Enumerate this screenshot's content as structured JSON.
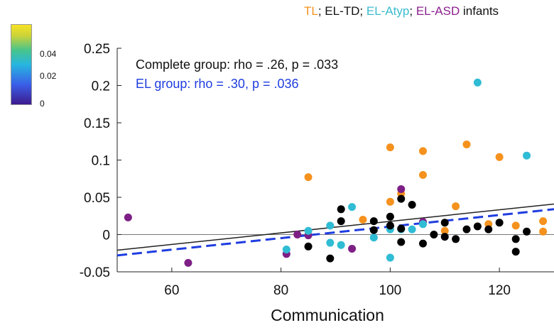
{
  "chart_data": {
    "type": "scatter",
    "title_parts": [
      "TL",
      "; ",
      "EL-TD",
      "; ",
      "EL-Atyp",
      "; ",
      "EL-ASD",
      " infants"
    ],
    "title_colors": [
      "#f5921e",
      "#111111",
      "#111111",
      "#111111",
      "#3bbcd0",
      "#111111",
      "#8b1f8f",
      "#111111"
    ],
    "xlabel": "Communication",
    "ylabel": "",
    "xlim": [
      50,
      130
    ],
    "ylim": [
      -0.05,
      0.25
    ],
    "xticks": [
      "60",
      "80",
      "100",
      "120"
    ],
    "xtick_values": [
      60,
      80,
      100,
      120
    ],
    "yticks": [
      "-0.05",
      "0",
      "0.05",
      "0.1",
      "0.15",
      "0.2",
      "0.25"
    ],
    "ytick_values": [
      -0.05,
      0,
      0.05,
      0.1,
      0.15,
      0.2,
      0.25
    ],
    "colorbar_ticks": [
      "0.04",
      "0.02",
      "0"
    ],
    "annotations": {
      "complete": "Complete group: rho = .26, p = .033",
      "el": "EL group: rho = .30, p = .036"
    },
    "colors": {
      "TL": "#f5921e",
      "EL-TD": "#000000",
      "EL-Atyp": "#2fbcd4",
      "EL-ASD": "#7e1f86",
      "complete_line": "#222222",
      "el_line": "#1f3de0"
    },
    "fit_lines": [
      {
        "name": "Complete group",
        "x": [
          50,
          130
        ],
        "y": [
          -0.021,
          0.041
        ],
        "style": "solid"
      },
      {
        "name": "EL group",
        "x": [
          50,
          130
        ],
        "y": [
          -0.028,
          0.034
        ],
        "style": "dashed"
      }
    ],
    "series": [
      {
        "name": "TL",
        "points": [
          [
            85,
            0.077
          ],
          [
            95,
            0.02
          ],
          [
            100,
            0.117
          ],
          [
            100,
            0.044
          ],
          [
            102,
            0.055
          ],
          [
            106,
            0.112
          ],
          [
            106,
            0.08
          ],
          [
            110,
            0.005
          ],
          [
            112,
            0.038
          ],
          [
            114,
            0.121
          ],
          [
            118,
            0.014
          ],
          [
            120,
            0.104
          ],
          [
            123,
            0.012
          ],
          [
            128,
            0.018
          ],
          [
            128,
            0.004
          ]
        ]
      },
      {
        "name": "EL-TD",
        "points": [
          [
            85,
            -0.016
          ],
          [
            89,
            -0.032
          ],
          [
            91,
            0.034
          ],
          [
            91,
            0.018
          ],
          [
            97,
            0.018
          ],
          [
            97,
            0.006
          ],
          [
            100,
            0.024
          ],
          [
            100,
            0.012
          ],
          [
            102,
            0.048
          ],
          [
            102,
            0.008
          ],
          [
            102,
            -0.01
          ],
          [
            104,
            0.04
          ],
          [
            106,
            -0.012
          ],
          [
            108,
            0.0
          ],
          [
            110,
            0.016
          ],
          [
            110,
            -0.003
          ],
          [
            112,
            -0.006
          ],
          [
            114,
            0.007
          ],
          [
            116,
            0.011
          ],
          [
            118,
            0.007
          ],
          [
            120,
            0.016
          ],
          [
            123,
            -0.006
          ],
          [
            123,
            -0.023
          ],
          [
            125,
            0.004
          ]
        ]
      },
      {
        "name": "EL-Atyp",
        "points": [
          [
            81,
            -0.02
          ],
          [
            85,
            0.005
          ],
          [
            89,
            0.012
          ],
          [
            89,
            -0.011
          ],
          [
            91,
            -0.014
          ],
          [
            93,
            0.037
          ],
          [
            97,
            -0.004
          ],
          [
            100,
            -0.031
          ],
          [
            100,
            0.007
          ],
          [
            102,
            0.007
          ],
          [
            104,
            0.007
          ],
          [
            106,
            0.014
          ],
          [
            116,
            0.204
          ],
          [
            125,
            0.106
          ]
        ]
      },
      {
        "name": "EL-ASD",
        "points": [
          [
            52,
            0.023
          ],
          [
            63,
            -0.038
          ],
          [
            81,
            -0.026
          ],
          [
            83,
            0.0
          ],
          [
            85,
            -0.001
          ],
          [
            93,
            -0.019
          ],
          [
            102,
            0.061
          ],
          [
            106,
            0.017
          ]
        ]
      }
    ]
  }
}
